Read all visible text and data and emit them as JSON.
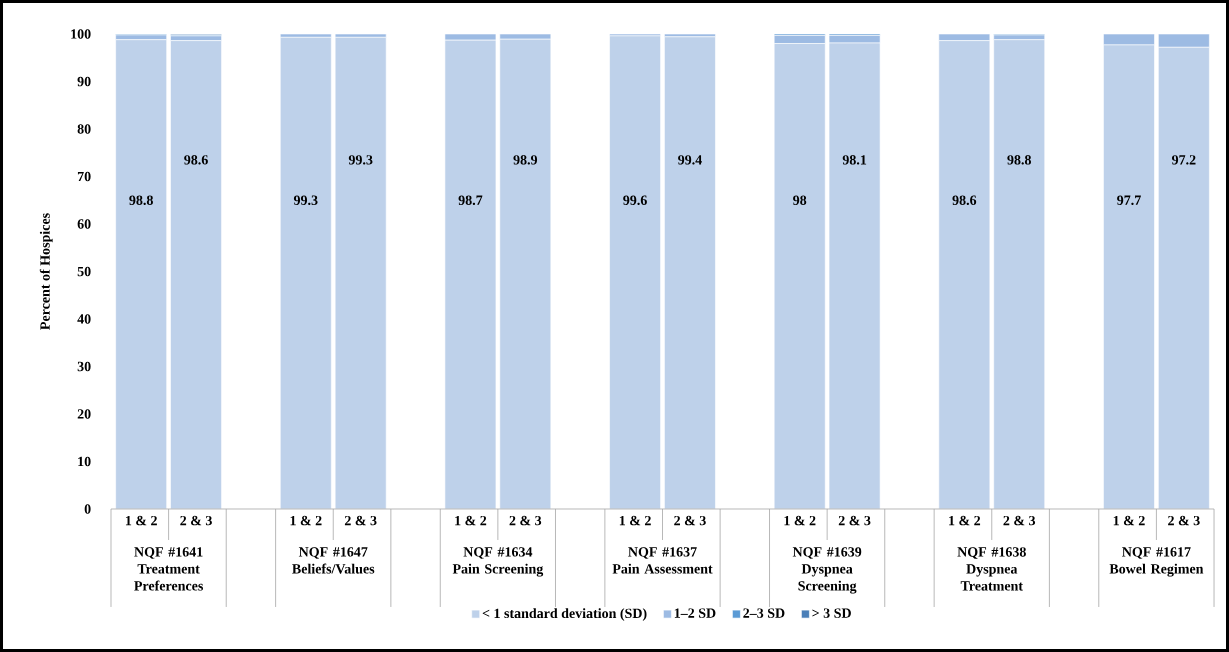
{
  "chart_data": {
    "type": "bar",
    "stacked": true,
    "ylabel": "Percent of Hospices",
    "ylim": [
      0,
      100
    ],
    "yticks": [
      0,
      10,
      20,
      30,
      40,
      50,
      60,
      70,
      80,
      90,
      100
    ],
    "categories": [
      "1 & 2",
      "2 & 3",
      null,
      "1 & 2",
      "2 & 3",
      null,
      "1 & 2",
      "2 & 3",
      null,
      "1 & 2",
      "2 & 3",
      null,
      "1 & 2",
      "2 & 3",
      null,
      "1 & 2",
      "2 & 3",
      null,
      "1 & 2",
      "2 & 3"
    ],
    "series": [
      {
        "name": "< 1 standard deviation (SD)",
        "color": "#bed1ea",
        "values": [
          98.8,
          98.6,
          null,
          99.3,
          99.3,
          null,
          98.7,
          98.9,
          null,
          99.6,
          99.4,
          null,
          98,
          98.1,
          null,
          98.6,
          98.8,
          null,
          97.7,
          97.2
        ],
        "value_labels": [
          "98.8",
          "98.6",
          null,
          "99.3",
          "99.3",
          null,
          "98.7",
          "98.9",
          null,
          "99.6",
          "99.4",
          null,
          "98",
          "98.1",
          null,
          "98.6",
          "98.8",
          null,
          "97.7",
          "97.2"
        ]
      },
      {
        "name": "1–2 SD",
        "color": "#9dbbe3",
        "values": [
          1.0,
          1.0,
          null,
          0.7,
          0.7,
          null,
          1.3,
          1.1,
          null,
          0.4,
          0.6,
          null,
          1.7,
          1.6,
          null,
          1.4,
          1.0,
          null,
          2.3,
          2.8
        ]
      },
      {
        "name": "2–3 SD",
        "color": "#5b9bd5",
        "values": [
          0.2,
          0.2,
          null,
          0,
          0,
          null,
          0,
          0,
          null,
          0,
          0,
          null,
          0.3,
          0.3,
          null,
          0,
          0.2,
          null,
          0,
          0
        ]
      },
      {
        "name": "> 3 SD",
        "color": "#4a7fb8",
        "values": [
          0,
          0.2,
          null,
          0,
          0,
          null,
          0,
          0,
          null,
          0,
          0,
          null,
          0,
          0,
          null,
          0,
          0,
          null,
          0,
          0
        ]
      }
    ],
    "annotations": [
      "NQF #1641 Treatment Preferences",
      "NQF #1647 Beliefs/Values",
      "NQF #1634 Pain Screening",
      "NQF #1637 Pain Assessment",
      "NQF #1639 Dyspnea Screening",
      "NQF #1638 Dyspnea Treatment",
      "NQF #1617 Bowel Regimen"
    ],
    "legend": "bottom"
  }
}
